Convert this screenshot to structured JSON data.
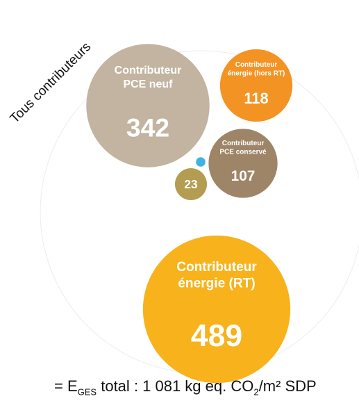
{
  "chart_data": {
    "type": "bubble",
    "title": "Tous contributeurs",
    "categories": [
      [
        "Contributeur",
        "PCE neuf"
      ],
      [
        "Contributeur",
        "énergie (hors RT)"
      ],
      [
        "Contributeur",
        "PCE conservé"
      ],
      null,
      null,
      [
        "Contributeur",
        "énergie (RT)"
      ]
    ],
    "values": [
      342,
      118,
      107,
      23,
      2,
      489
    ],
    "colors": [
      "#c2b4a0",
      "#f39324",
      "#9e8568",
      "#b49d52",
      "#3fb2e2",
      "#f7b21c"
    ],
    "value_labels_shown": [
      true,
      true,
      true,
      true,
      false,
      true
    ],
    "footer": {
      "prefix": "= E",
      "sub1": "GES",
      "middle": " total :  1 081 kg eq. CO",
      "sub2": "2",
      "suffix": "/m² SDP"
    }
  }
}
